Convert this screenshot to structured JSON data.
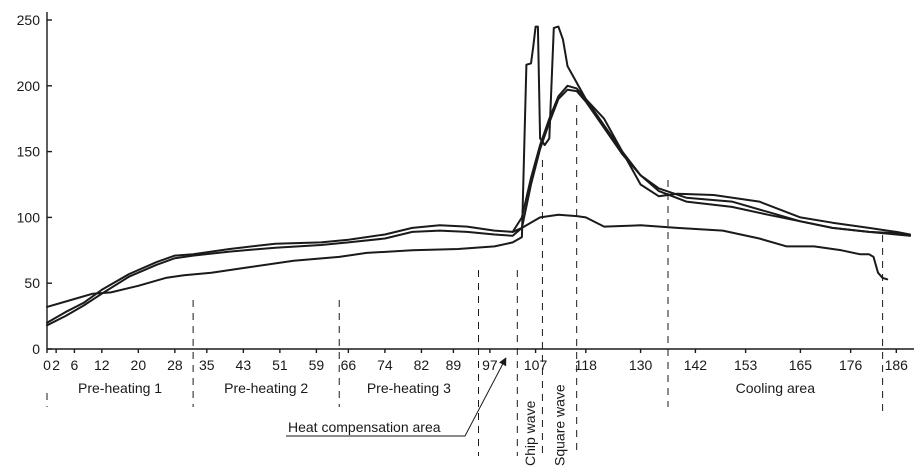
{
  "chart_data": {
    "type": "line",
    "title": "",
    "xlabel": "",
    "ylabel": "",
    "xlim": [
      0,
      189
    ],
    "ylim": [
      0,
      250
    ],
    "grid": false,
    "y_ticks": [
      0,
      50,
      100,
      150,
      200,
      250
    ],
    "x_ticks": [
      0,
      2,
      6,
      12,
      20,
      28,
      35,
      43,
      51,
      59,
      66,
      74,
      82,
      89,
      97,
      107,
      118,
      130,
      142,
      153,
      165,
      176,
      186
    ],
    "series": [
      {
        "values": [
          [
            0,
            20
          ],
          [
            4,
            28
          ],
          [
            8,
            35
          ],
          [
            12,
            45
          ],
          [
            18,
            57
          ],
          [
            24,
            66
          ],
          [
            28,
            71
          ],
          [
            32,
            72
          ],
          [
            40,
            76
          ],
          [
            50,
            80
          ],
          [
            60,
            81
          ],
          [
            66,
            83
          ],
          [
            74,
            87
          ],
          [
            80,
            92
          ],
          [
            86,
            94
          ],
          [
            92,
            93
          ],
          [
            98,
            90
          ],
          [
            102,
            89
          ],
          [
            104,
            100
          ],
          [
            106,
            130
          ],
          [
            108,
            155
          ],
          [
            110,
            175
          ],
          [
            112,
            192
          ],
          [
            114,
            200
          ],
          [
            116,
            198
          ],
          [
            118,
            190
          ],
          [
            122,
            170
          ],
          [
            126,
            150
          ],
          [
            130,
            132
          ],
          [
            134,
            120
          ],
          [
            140,
            112
          ],
          [
            150,
            108
          ],
          [
            158,
            102
          ],
          [
            165,
            97
          ],
          [
            172,
            92
          ],
          [
            180,
            89
          ],
          [
            186,
            88
          ],
          [
            189,
            86
          ]
        ]
      },
      {
        "values": [
          [
            0,
            18
          ],
          [
            4,
            25
          ],
          [
            8,
            33
          ],
          [
            12,
            42
          ],
          [
            18,
            55
          ],
          [
            24,
            64
          ],
          [
            28,
            69
          ],
          [
            32,
            71
          ],
          [
            40,
            74
          ],
          [
            50,
            77
          ],
          [
            60,
            79
          ],
          [
            66,
            81
          ],
          [
            74,
            84
          ],
          [
            80,
            89
          ],
          [
            86,
            90
          ],
          [
            92,
            89
          ],
          [
            98,
            87
          ],
          [
            102,
            86
          ],
          [
            104,
            92
          ],
          [
            106,
            125
          ],
          [
            108,
            152
          ],
          [
            110,
            172
          ],
          [
            112,
            190
          ],
          [
            114,
            197
          ],
          [
            116,
            196
          ],
          [
            118,
            188
          ],
          [
            122,
            168
          ],
          [
            126,
            148
          ],
          [
            130,
            132
          ],
          [
            134,
            122
          ],
          [
            140,
            115
          ],
          [
            150,
            112
          ],
          [
            158,
            104
          ],
          [
            165,
            97
          ],
          [
            172,
            92
          ],
          [
            180,
            89
          ],
          [
            186,
            87
          ],
          [
            189,
            86
          ]
        ]
      },
      {
        "values": [
          [
            0,
            32
          ],
          [
            6,
            38
          ],
          [
            10,
            42
          ],
          [
            14,
            43
          ],
          [
            20,
            48
          ],
          [
            26,
            54
          ],
          [
            30,
            56
          ],
          [
            36,
            58
          ],
          [
            44,
            62
          ],
          [
            54,
            67
          ],
          [
            64,
            70
          ],
          [
            70,
            73
          ],
          [
            80,
            75
          ],
          [
            90,
            76
          ],
          [
            98,
            78
          ],
          [
            102,
            81
          ],
          [
            104,
            85
          ],
          [
            105,
            216
          ],
          [
            106,
            217
          ],
          [
            106.5,
            230
          ],
          [
            107,
            245
          ],
          [
            107.5,
            245
          ],
          [
            108,
            160
          ],
          [
            109,
            155
          ],
          [
            110,
            160
          ],
          [
            111,
            244
          ],
          [
            112,
            245
          ],
          [
            113,
            235
          ],
          [
            114,
            215
          ],
          [
            118,
            190
          ],
          [
            122,
            175
          ],
          [
            126,
            150
          ],
          [
            130,
            125
          ],
          [
            134,
            116
          ],
          [
            138,
            118
          ],
          [
            146,
            117
          ],
          [
            156,
            112
          ],
          [
            165,
            100
          ],
          [
            172,
            96
          ],
          [
            180,
            92
          ],
          [
            186,
            89
          ],
          [
            189,
            87
          ]
        ]
      },
      {
        "values": [
          [
            102,
            89
          ],
          [
            104,
            92
          ],
          [
            108,
            100
          ],
          [
            112,
            102
          ],
          [
            116,
            101
          ],
          [
            118,
            100
          ],
          [
            122,
            93
          ],
          [
            130,
            94
          ],
          [
            138,
            92
          ],
          [
            148,
            90
          ],
          [
            156,
            84
          ],
          [
            162,
            78
          ],
          [
            168,
            78
          ],
          [
            174,
            75
          ],
          [
            178,
            72
          ],
          [
            180,
            72
          ],
          [
            181,
            70
          ],
          [
            182,
            58
          ],
          [
            183,
            54
          ],
          [
            184,
            53
          ]
        ]
      }
    ],
    "zones": [
      {
        "label": "Pre-heating 1",
        "start": 0,
        "end": 32
      },
      {
        "label": "Pre-heating 2",
        "start": 32,
        "end": 64
      },
      {
        "label": "Pre-heating 3",
        "start": 64,
        "end": 94.5
      },
      {
        "label": "Chip wave",
        "start": 103,
        "end": 108.5
      },
      {
        "label": "Square wave",
        "start": 108.5,
        "end": 116
      },
      {
        "label": "Cooling area",
        "start": 136,
        "end": 183
      }
    ],
    "annotations": [
      {
        "label": "Heat compensation area",
        "x": 100.5
      }
    ]
  }
}
